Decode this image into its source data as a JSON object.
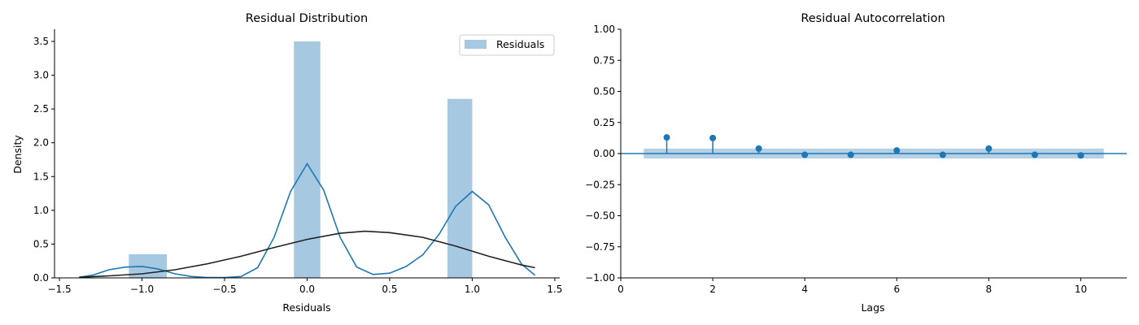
{
  "colors": {
    "bar": "#a6c8e1",
    "kde": "#1f77b4",
    "normal": "#222222",
    "acf": "#1f77b4",
    "band": "#b6d0e6"
  },
  "chart_data": [
    {
      "type": "bar",
      "title": "Residual Distribution",
      "xlabel": "Residuals",
      "ylabel": "Density",
      "xlim": [
        -1.53,
        1.53
      ],
      "ylim": [
        0,
        3.68
      ],
      "xticks": [
        -1.5,
        -1.0,
        -0.5,
        0.0,
        0.5,
        1.0,
        1.5
      ],
      "yticks": [
        0.0,
        0.5,
        1.0,
        1.5,
        2.0,
        2.5,
        3.0,
        3.5
      ],
      "bars": [
        {
          "x0": -1.08,
          "x1": -0.85,
          "value": 0.35
        },
        {
          "x0": -0.08,
          "x1": 0.08,
          "value": 3.5
        },
        {
          "x0": 0.85,
          "x1": 1.0,
          "value": 2.65
        }
      ],
      "legend": {
        "label": "Residuals",
        "position": "top-right"
      },
      "kde_curve": {
        "x": [
          -1.38,
          -1.3,
          -1.2,
          -1.1,
          -1.0,
          -0.9,
          -0.8,
          -0.7,
          -0.6,
          -0.5,
          -0.4,
          -0.3,
          -0.2,
          -0.1,
          0.0,
          0.1,
          0.2,
          0.3,
          0.4,
          0.5,
          0.6,
          0.7,
          0.8,
          0.9,
          1.0,
          1.1,
          1.2,
          1.3,
          1.38
        ],
        "y": [
          0.01,
          0.04,
          0.12,
          0.16,
          0.17,
          0.13,
          0.06,
          0.02,
          0.005,
          0.005,
          0.02,
          0.15,
          0.6,
          1.28,
          1.69,
          1.3,
          0.6,
          0.16,
          0.05,
          0.07,
          0.17,
          0.34,
          0.65,
          1.06,
          1.28,
          1.08,
          0.6,
          0.2,
          0.04
        ]
      },
      "normal_curve": {
        "x": [
          -1.38,
          -1.2,
          -1.0,
          -0.8,
          -0.6,
          -0.4,
          -0.2,
          0.0,
          0.2,
          0.35,
          0.5,
          0.7,
          0.9,
          1.1,
          1.3,
          1.38
        ],
        "y": [
          0.01,
          0.03,
          0.06,
          0.12,
          0.21,
          0.32,
          0.45,
          0.57,
          0.66,
          0.69,
          0.67,
          0.6,
          0.47,
          0.32,
          0.19,
          0.15
        ]
      }
    },
    {
      "type": "scatter",
      "title": "Residual Autocorrelation",
      "xlabel": "Lags",
      "ylabel": "",
      "xlim": [
        0,
        11
      ],
      "ylim": [
        -1.0,
        1.0
      ],
      "xticks": [
        0,
        2,
        4,
        6,
        8,
        10
      ],
      "yticks": [
        -1.0,
        -0.75,
        -0.5,
        -0.25,
        0.0,
        0.25,
        0.5,
        0.75,
        1.0
      ],
      "ytick_labels": [
        "−1.00",
        "−0.75",
        "−0.50",
        "−0.25",
        "0.00",
        "0.25",
        "0.50",
        "0.75",
        "1.00"
      ],
      "lags": [
        1,
        2,
        3,
        4,
        5,
        6,
        7,
        8,
        9,
        10
      ],
      "acf": [
        0.13,
        0.125,
        0.04,
        -0.01,
        -0.01,
        0.025,
        -0.01,
        0.04,
        -0.01,
        -0.015
      ],
      "confidence_band": {
        "x": [
          0.5,
          10.5
        ],
        "lower": -0.04,
        "upper": 0.04
      }
    }
  ]
}
